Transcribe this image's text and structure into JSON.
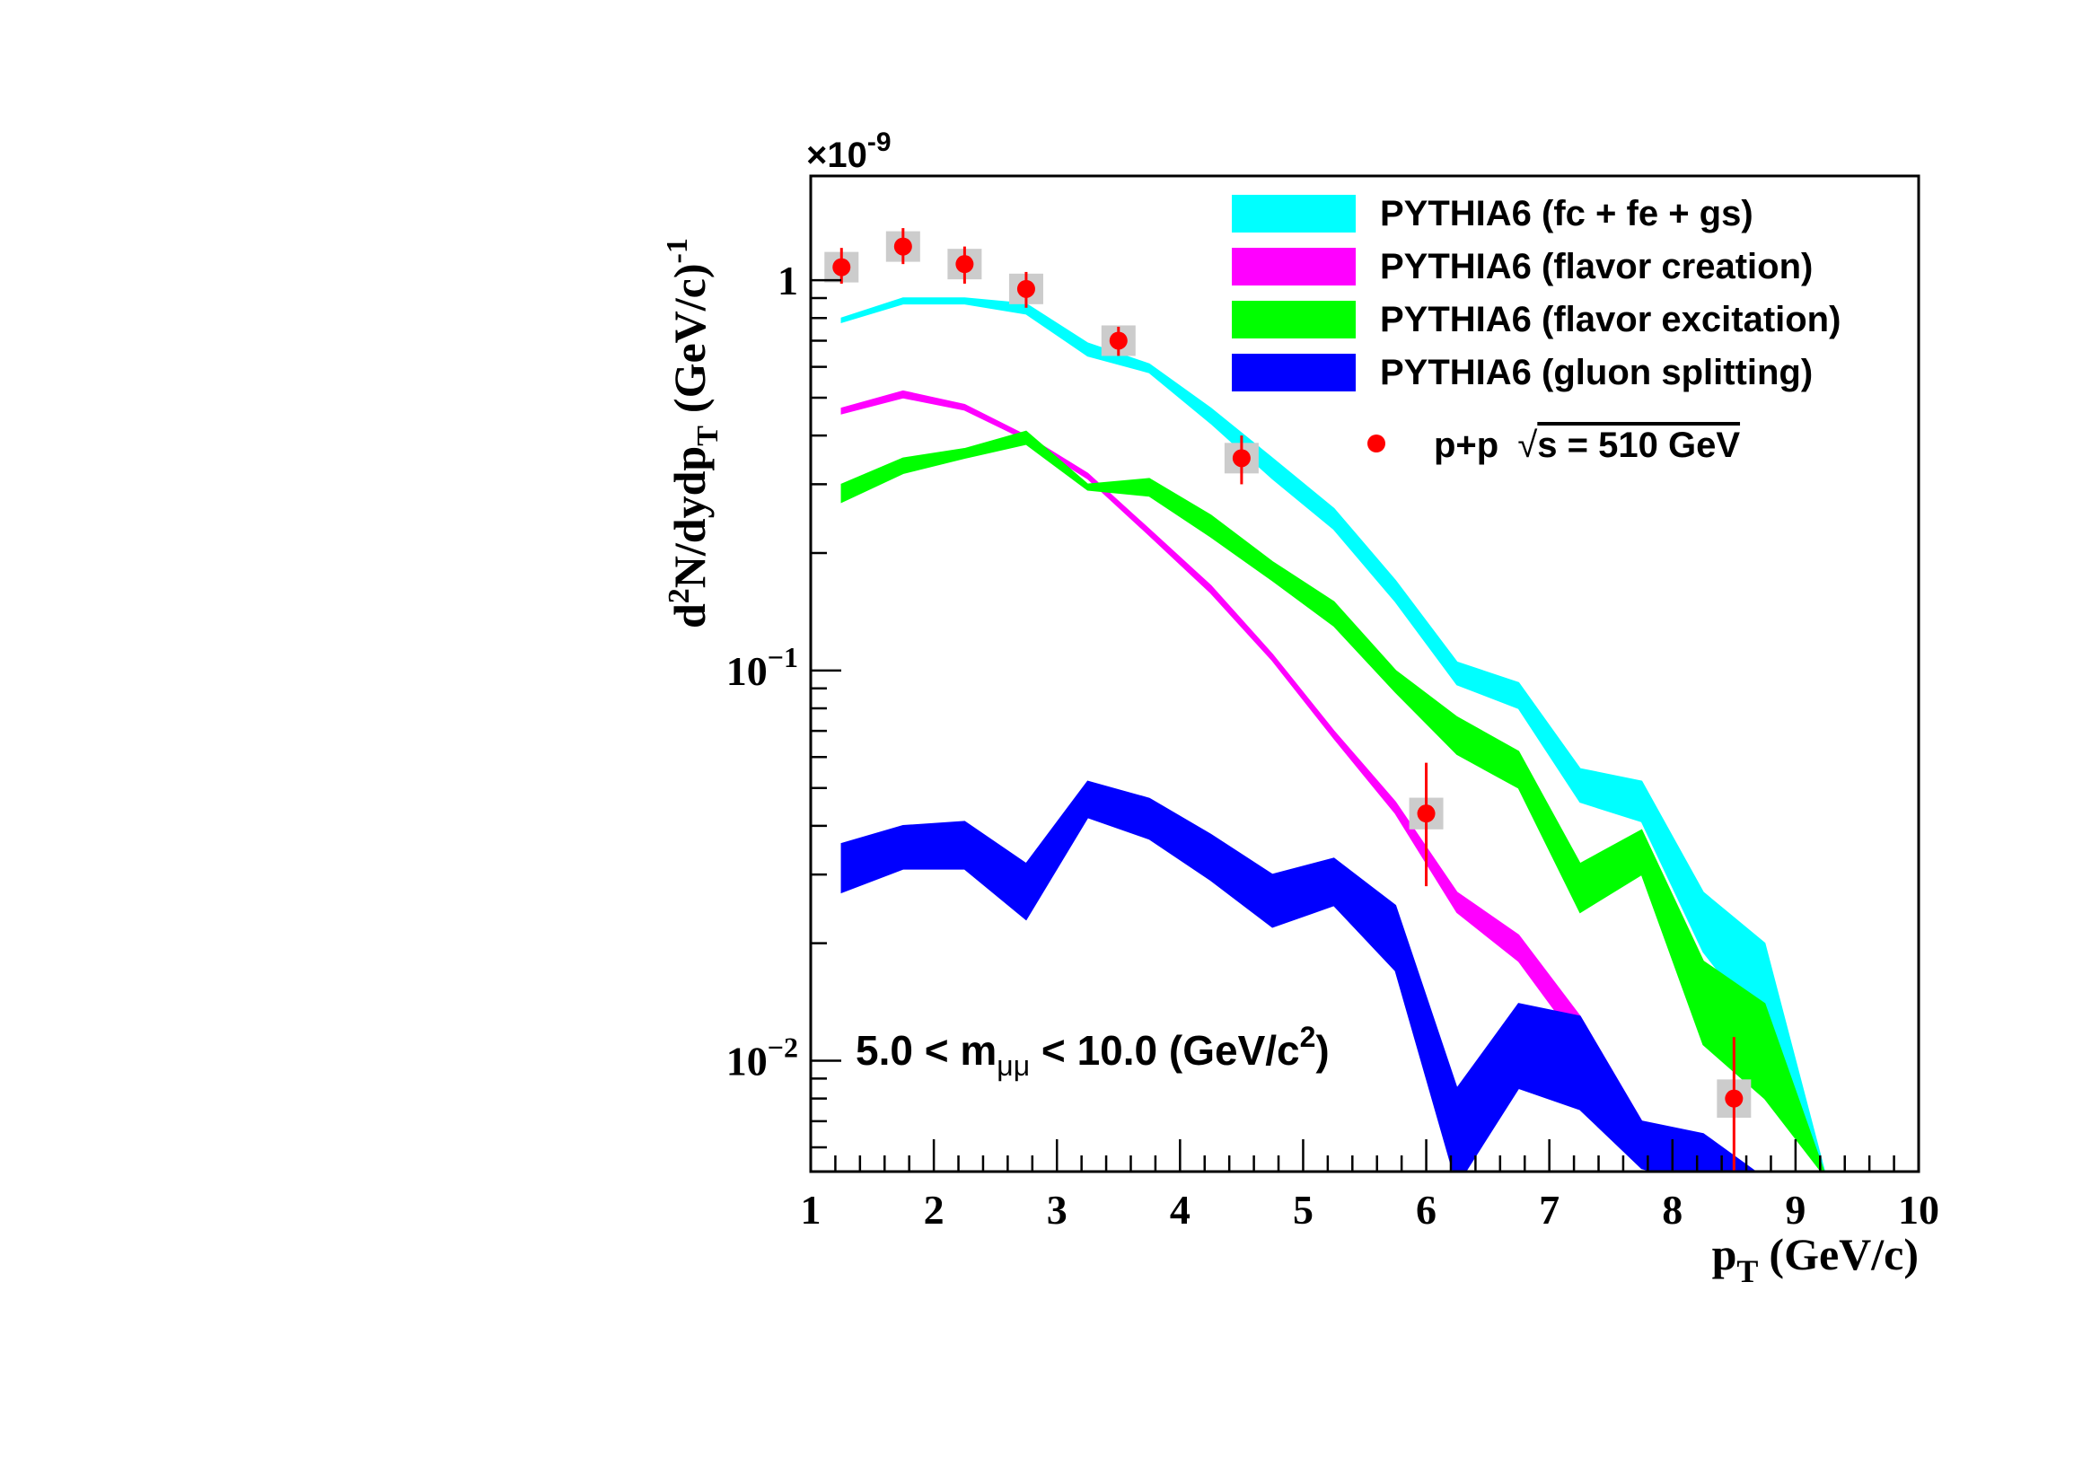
{
  "chart_data": {
    "type": "area",
    "xlabel": "p",
    "xlabel_sub": "T",
    "xlabel_unit": "(GeV/c)",
    "ylabel": {
      "main": "d",
      "sup": "2",
      "mid": "N/dydp",
      "sub": "T",
      "unit": "(GeV/c)",
      "unit_sup": "-1"
    },
    "y_multiplier": {
      "x": "×",
      "base": "10",
      "exp": "-9"
    },
    "y_scale": "log",
    "xlim": [
      1,
      10
    ],
    "ylim": [
      0.0052,
      1.85
    ],
    "x_ticks": [
      "1",
      "2",
      "3",
      "4",
      "5",
      "6",
      "7",
      "8",
      "9",
      "10"
    ],
    "y_ticks": [
      {
        "value": 1,
        "base": "1",
        "exp": ""
      },
      {
        "value": 0.1,
        "base": "10",
        "exp": "−1"
      },
      {
        "value": 0.01,
        "base": "10",
        "exp": "−2"
      }
    ],
    "annotation": {
      "pre": "5.0 < m",
      "sub": "μμ",
      "mid": " < 10.0 (GeV/c",
      "sup": "2",
      "post": ")"
    },
    "x": [
      1.25,
      1.75,
      2.25,
      2.75,
      3.25,
      3.75,
      4.25,
      4.75,
      5.25,
      5.75,
      6.25,
      6.75,
      7.25,
      7.75,
      8.25,
      8.75,
      9.25
    ],
    "series": [
      {
        "name": "PYTHIA6 (fc + fe + gs)",
        "color": "#00ffff",
        "upper": [
          0.8,
          0.9,
          0.9,
          0.87,
          0.69,
          0.61,
          0.47,
          0.35,
          0.26,
          0.17,
          0.105,
          0.093,
          0.056,
          0.052,
          0.027,
          0.02,
          0.005
        ],
        "lower": [
          0.78,
          0.87,
          0.87,
          0.82,
          0.64,
          0.58,
          0.43,
          0.31,
          0.23,
          0.15,
          0.092,
          0.08,
          0.046,
          0.041,
          0.019,
          0.012,
          0.005
        ]
      },
      {
        "name": "PYTHIA6 (flavor creation)",
        "color": "#ff00ff",
        "upper": [
          0.47,
          0.52,
          0.48,
          0.4,
          0.32,
          0.23,
          0.165,
          0.11,
          0.07,
          0.046,
          0.027,
          0.021,
          0.013,
          0.007,
          0.005,
          0.005,
          0.005
        ],
        "lower": [
          0.455,
          0.5,
          0.465,
          0.39,
          0.31,
          0.222,
          0.158,
          0.106,
          0.067,
          0.043,
          0.024,
          0.018,
          0.011,
          0.0064,
          0.005,
          0.005,
          0.005
        ]
      },
      {
        "name": "PYTHIA6 (flavor excitation)",
        "color": "#00ff00",
        "upper": [
          0.3,
          0.35,
          0.37,
          0.41,
          0.3,
          0.31,
          0.25,
          0.19,
          0.15,
          0.1,
          0.076,
          0.062,
          0.032,
          0.039,
          0.018,
          0.014,
          0.005
        ],
        "lower": [
          0.27,
          0.32,
          0.35,
          0.38,
          0.29,
          0.28,
          0.22,
          0.17,
          0.13,
          0.088,
          0.061,
          0.05,
          0.024,
          0.03,
          0.011,
          0.008,
          0.005
        ]
      },
      {
        "name": "PYTHIA6 (gluon splitting)",
        "color": "#0000ff",
        "upper": [
          0.036,
          0.04,
          0.041,
          0.032,
          0.052,
          0.047,
          0.038,
          0.03,
          0.033,
          0.025,
          0.0085,
          0.014,
          0.013,
          0.007,
          0.0065,
          0.005,
          0.005
        ],
        "lower": [
          0.027,
          0.031,
          0.031,
          0.023,
          0.042,
          0.037,
          0.029,
          0.022,
          0.025,
          0.017,
          0.0048,
          0.0085,
          0.0075,
          0.0053,
          0.0048,
          0.0045,
          0.0045
        ]
      }
    ],
    "data_series": {
      "name": "p+p  √s = 510 GeV",
      "legend_pre": "p+p  ",
      "legend_root": "√",
      "legend_post": "s = 510 GeV",
      "color": "#ff0000",
      "sys_color": "#cccccc",
      "points": [
        {
          "x": 1.25,
          "y": 1.08,
          "err_low": 0.1,
          "err_high": 0.13,
          "sys": 0.07
        },
        {
          "x": 1.75,
          "y": 1.22,
          "err_low": 0.12,
          "err_high": 0.14,
          "sys": 0.08
        },
        {
          "x": 2.25,
          "y": 1.1,
          "err_low": 0.12,
          "err_high": 0.12,
          "sys": 0.07
        },
        {
          "x": 2.75,
          "y": 0.95,
          "err_low": 0.1,
          "err_high": 0.1,
          "sys": 0.06
        },
        {
          "x": 3.5,
          "y": 0.7,
          "err_low": 0.06,
          "err_high": 0.06,
          "sys": 0.05
        },
        {
          "x": 4.5,
          "y": 0.35,
          "err_low": 0.05,
          "err_high": 0.05,
          "sys": 0.025
        },
        {
          "x": 6.0,
          "y": 0.043,
          "err_low": 0.015,
          "err_high": 0.015,
          "sys": 0.004
        },
        {
          "x": 8.5,
          "y": 0.008,
          "err_low": 0.003,
          "err_high": 0.0035,
          "sys": 0.0009
        }
      ]
    },
    "legend_position": "top-right"
  }
}
